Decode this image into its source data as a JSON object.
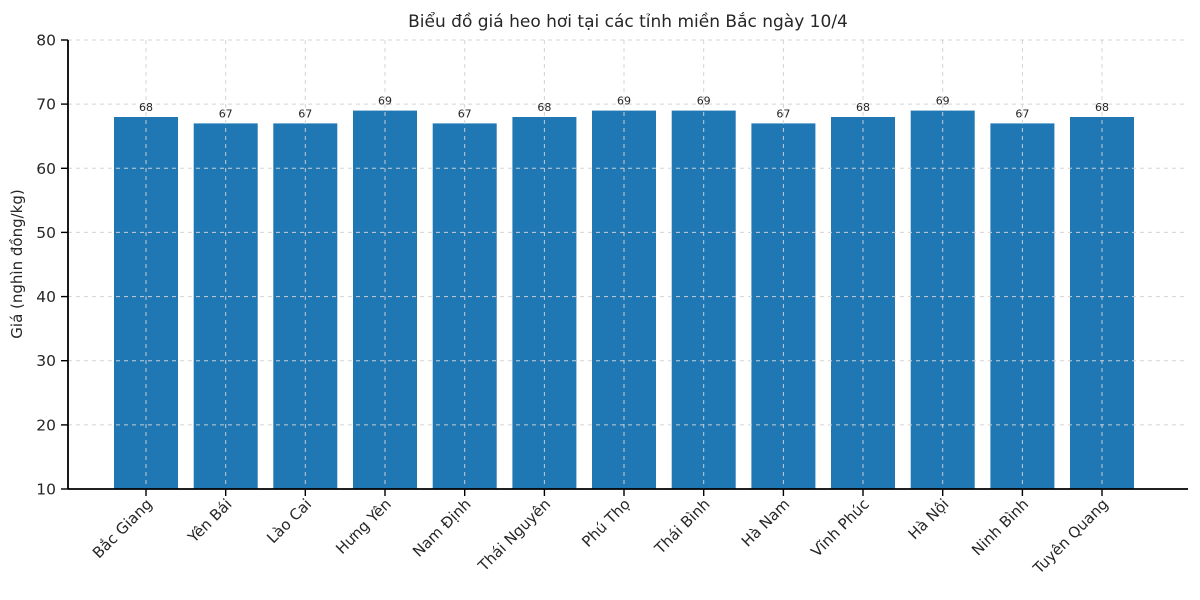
{
  "figure": {
    "title": "Biểu đồ giá heo hơi tại các tỉnh miền Bắc ngày 10/4",
    "ylabel": "Giá (nghìn đồng/kg)"
  },
  "chart_data": {
    "type": "bar",
    "title": "Biểu đồ giá heo hơi tại các tỉnh miền Bắc ngày 10/4",
    "xlabel": "",
    "ylabel": "Giá (nghìn đồng/kg)",
    "categories": [
      "Bắc Giang",
      "Yên Bái",
      "Lào Cai",
      "Hưng Yên",
      "Nam Định",
      "Thái Nguyên",
      "Phú Thọ",
      "Thái Bình",
      "Hà Nam",
      "Vĩnh Phúc",
      "Hà Nội",
      "Ninh Bình",
      "Tuyên Quang"
    ],
    "values": [
      68,
      67,
      67,
      69,
      67,
      68,
      69,
      69,
      67,
      68,
      69,
      67,
      68
    ],
    "value_labels": [
      "68",
      "67",
      "67",
      "69",
      "67",
      "68",
      "69",
      "69",
      "67",
      "68",
      "69",
      "67",
      "68"
    ],
    "ylim": [
      10,
      80
    ],
    "yticks": [
      10,
      20,
      30,
      40,
      50,
      60,
      70,
      80
    ],
    "bar_color": "#1f77b4",
    "grid": true,
    "grid_style": "dashed",
    "grid_color": "#d2d2d2",
    "axis_color": "#000000",
    "text_color": "#262626",
    "legend": "none",
    "xtick_rotation_deg": 45
  }
}
